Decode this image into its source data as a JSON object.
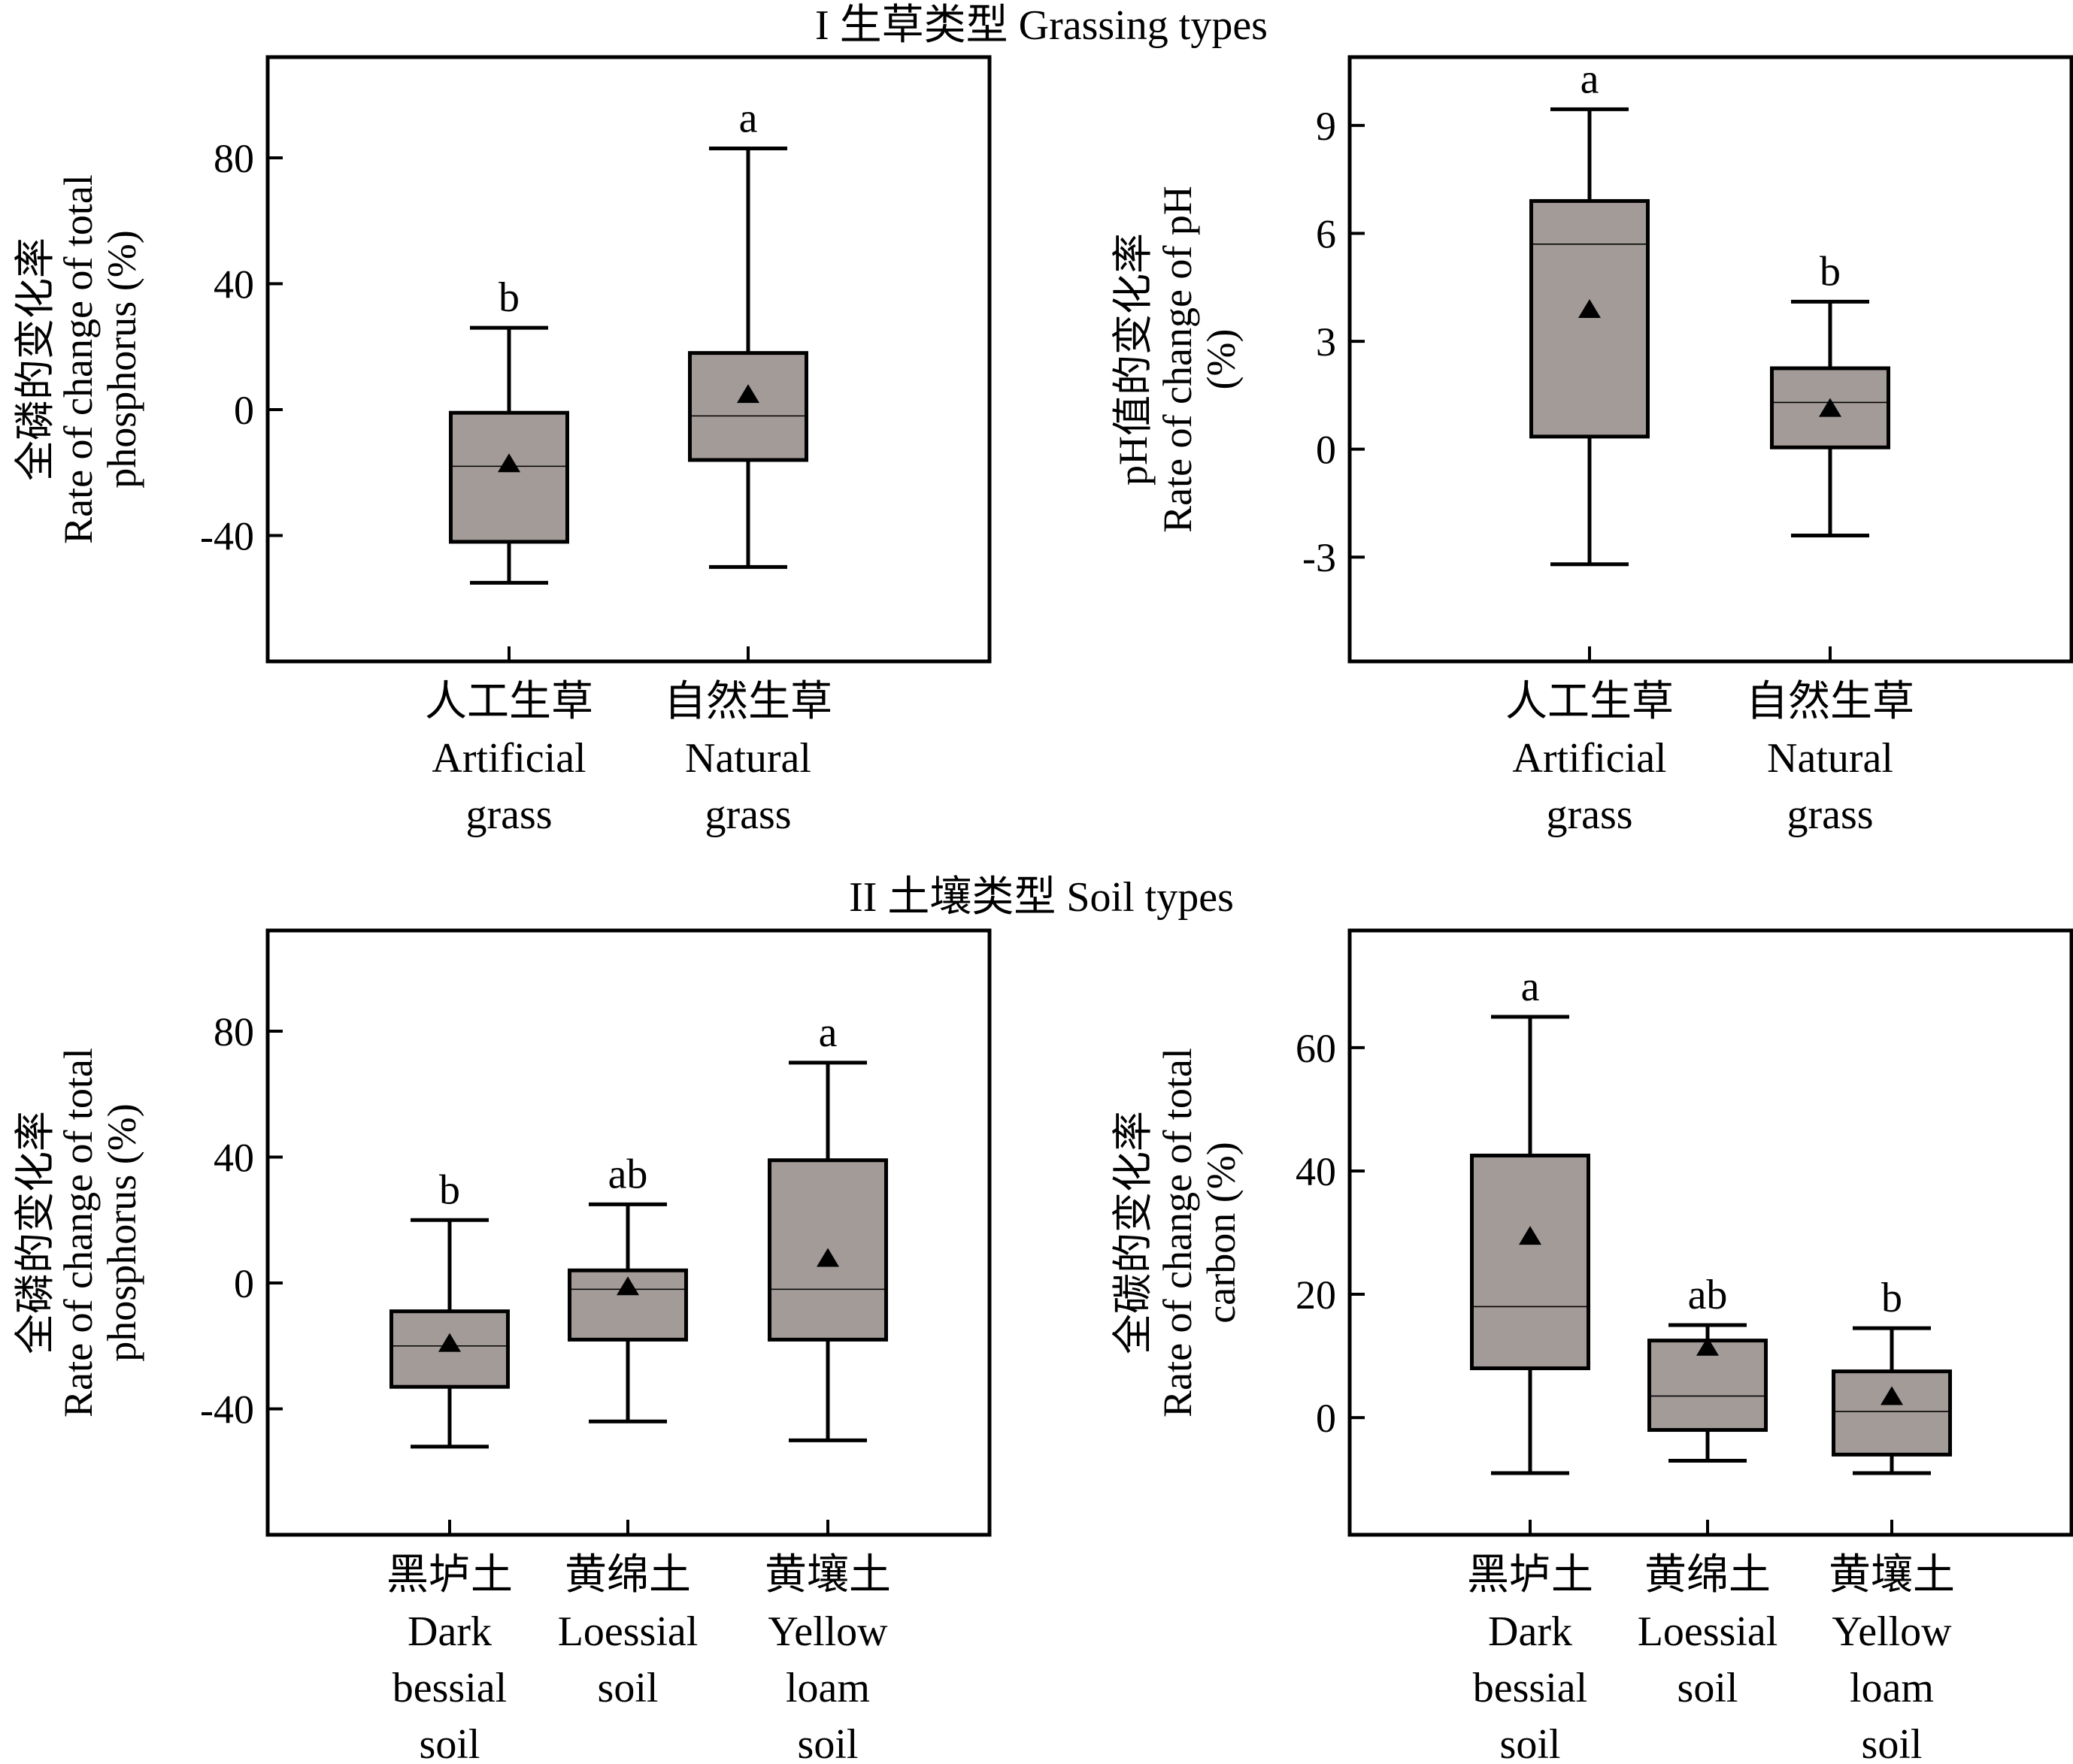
{
  "sections": [
    {
      "title": "I 生草类型 Grassing types"
    },
    {
      "title": "II 土壤类型 Soil types"
    }
  ],
  "chart_data": [
    {
      "type": "box",
      "section": 0,
      "ylabel_lines": [
        "全磷的变化率",
        "Rate of change of total",
        "phosphorus (%)"
      ],
      "ylim": [
        -80,
        112
      ],
      "yticks": [
        -40,
        0,
        40,
        80
      ],
      "categories": [
        {
          "lines": [
            "人工生草",
            "Artificial",
            "grass"
          ]
        },
        {
          "lines": [
            "自然生草",
            "Natural",
            "grass"
          ]
        }
      ],
      "boxes": [
        {
          "min": -55,
          "q1": -42,
          "median": -18,
          "q3": -1,
          "max": 26,
          "mean": -17,
          "sig": "b"
        },
        {
          "min": -50,
          "q1": -16,
          "median": -2,
          "q3": 18,
          "max": 83,
          "mean": 5,
          "sig": "a"
        }
      ]
    },
    {
      "type": "box",
      "section": 0,
      "ylabel_lines": [
        "pH值的变化率",
        "Rate of change of pH",
        "(%)"
      ],
      "ylim": [
        -5.9,
        10.9
      ],
      "yticks": [
        -3,
        0,
        3,
        6,
        9
      ],
      "categories": [
        {
          "lines": [
            "人工生草",
            "Artificial",
            "grass"
          ]
        },
        {
          "lines": [
            "自然生草",
            "Natural",
            "grass"
          ]
        }
      ],
      "boxes": [
        {
          "min": -3.2,
          "q1": 0.35,
          "median": 5.7,
          "q3": 6.9,
          "max": 9.45,
          "mean": 3.9,
          "sig": "a"
        },
        {
          "min": -2.4,
          "q1": 0.05,
          "median": 1.3,
          "q3": 2.25,
          "max": 4.1,
          "mean": 1.15,
          "sig": "b"
        }
      ]
    },
    {
      "type": "box",
      "section": 1,
      "ylabel_lines": [
        "全磷的变化率",
        "Rate of change of total",
        "phosphorus (%)"
      ],
      "ylim": [
        -80,
        112
      ],
      "yticks": [
        -40,
        0,
        40,
        80
      ],
      "categories": [
        {
          "lines": [
            "黑垆土",
            "Dark",
            "bessial",
            "soil"
          ]
        },
        {
          "lines": [
            "黄绵土",
            "Loessial",
            "soil"
          ]
        },
        {
          "lines": [
            "黄壤土",
            "Yellow",
            "loam",
            "soil"
          ]
        }
      ],
      "boxes": [
        {
          "min": -52,
          "q1": -33,
          "median": -20,
          "q3": -9,
          "max": 20,
          "mean": -19,
          "sig": "b"
        },
        {
          "min": -44,
          "q1": -18,
          "median": -2,
          "q3": 4,
          "max": 25,
          "mean": -1,
          "sig": "ab"
        },
        {
          "min": -50,
          "q1": -18,
          "median": -2,
          "q3": 39,
          "max": 70,
          "mean": 8,
          "sig": "a"
        }
      ]
    },
    {
      "type": "box",
      "section": 1,
      "ylabel_lines": [
        "全碳的变化率",
        "Rate of change of total",
        "carbon (%)"
      ],
      "ylim": [
        -19,
        79
      ],
      "yticks": [
        0,
        20,
        40,
        60
      ],
      "categories": [
        {
          "lines": [
            "黑垆土",
            "Dark",
            "bessial",
            "soil"
          ]
        },
        {
          "lines": [
            "黄绵土",
            "Loessial",
            "soil"
          ]
        },
        {
          "lines": [
            "黄壤土",
            "Yellow",
            "loam",
            "soil"
          ]
        }
      ],
      "boxes": [
        {
          "min": -9,
          "q1": 8,
          "median": 18,
          "q3": 42.5,
          "max": 65,
          "mean": 29.5,
          "sig": "a"
        },
        {
          "min": -7,
          "q1": -2,
          "median": 3.5,
          "q3": 12.5,
          "max": 15,
          "mean": 11.5,
          "sig": "ab"
        },
        {
          "min": -9,
          "q1": -6,
          "median": 1,
          "q3": 7.5,
          "max": 14.5,
          "mean": 3.5,
          "sig": "b"
        }
      ]
    }
  ],
  "style": {
    "box_fill": "#a39b98",
    "stroke": "#000000"
  }
}
